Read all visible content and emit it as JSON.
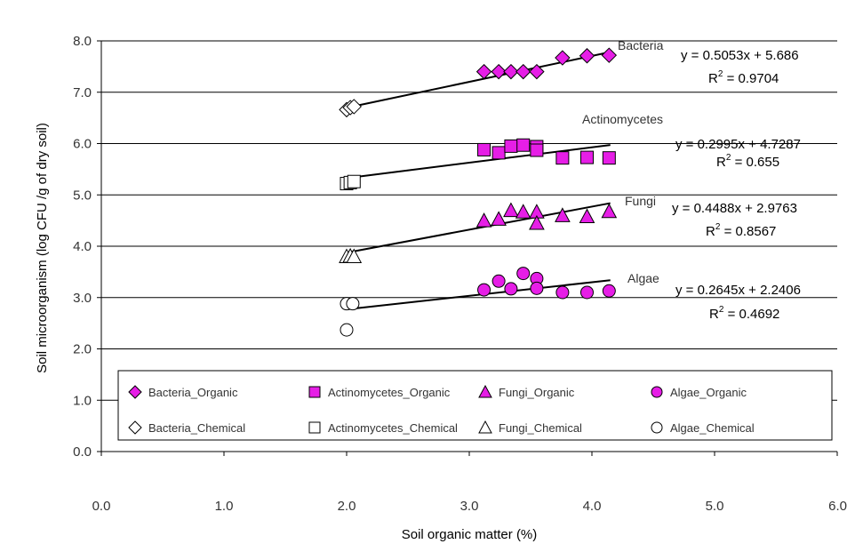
{
  "chart_data": {
    "type": "scatter",
    "xlabel": "Soil organic matter (%)",
    "ylabel": "Soil microorganism (log CFU /g of dry soil)",
    "xlim": [
      0,
      6
    ],
    "ylim": [
      0,
      8
    ],
    "xticks": [
      "0.0",
      "1.0",
      "2.0",
      "3.0",
      "4.0",
      "5.0",
      "6.0"
    ],
    "yticks": [
      "0.0",
      "1.0",
      "2.0",
      "3.0",
      "4.0",
      "5.0",
      "6.0",
      "7.0",
      "8.0"
    ],
    "grid": "horizontal",
    "legend_position": "bottom",
    "colors": {
      "organic": "#e61ee6",
      "chemical": "#ffffff",
      "line": "#000000"
    },
    "series": [
      {
        "name": "Bacteria_Organic",
        "marker": "diamond",
        "filled": true,
        "points": [
          [
            3.12,
            7.4
          ],
          [
            3.24,
            7.4
          ],
          [
            3.34,
            7.4
          ],
          [
            3.44,
            7.4
          ],
          [
            3.55,
            7.4
          ],
          [
            3.76,
            7.67
          ],
          [
            3.96,
            7.71
          ],
          [
            4.14,
            7.72
          ]
        ]
      },
      {
        "name": "Actinomycetes_Organic",
        "marker": "square",
        "filled": true,
        "points": [
          [
            3.12,
            5.88
          ],
          [
            3.24,
            5.82
          ],
          [
            3.34,
            5.95
          ],
          [
            3.44,
            5.97
          ],
          [
            3.55,
            5.94
          ],
          [
            3.55,
            5.87
          ],
          [
            3.76,
            5.72
          ],
          [
            3.96,
            5.73
          ],
          [
            4.14,
            5.72
          ]
        ]
      },
      {
        "name": "Fungi_Organic",
        "marker": "triangle",
        "filled": true,
        "points": [
          [
            3.12,
            4.5
          ],
          [
            3.24,
            4.53
          ],
          [
            3.34,
            4.7
          ],
          [
            3.44,
            4.67
          ],
          [
            3.55,
            4.67
          ],
          [
            3.55,
            4.45
          ],
          [
            3.76,
            4.6
          ],
          [
            3.96,
            4.58
          ],
          [
            4.14,
            4.68
          ]
        ]
      },
      {
        "name": "Algae_Organic",
        "marker": "circle",
        "filled": true,
        "points": [
          [
            3.12,
            3.15
          ],
          [
            3.24,
            3.32
          ],
          [
            3.34,
            3.17
          ],
          [
            3.44,
            3.47
          ],
          [
            3.55,
            3.37
          ],
          [
            3.55,
            3.18
          ],
          [
            3.76,
            3.1
          ],
          [
            3.96,
            3.1
          ],
          [
            4.14,
            3.13
          ]
        ]
      },
      {
        "name": "Bacteria_Chemical",
        "marker": "diamond",
        "filled": false,
        "points": [
          [
            2.0,
            6.66
          ],
          [
            2.03,
            6.7
          ],
          [
            2.06,
            6.72
          ]
        ]
      },
      {
        "name": "Actinomycetes_Chemical",
        "marker": "square",
        "filled": false,
        "points": [
          [
            2.0,
            5.22
          ],
          [
            2.03,
            5.24
          ],
          [
            2.06,
            5.26
          ]
        ]
      },
      {
        "name": "Fungi_Chemical",
        "marker": "triangle",
        "filled": false,
        "points": [
          [
            2.0,
            3.8
          ],
          [
            2.03,
            3.81
          ],
          [
            2.06,
            3.8
          ]
        ]
      },
      {
        "name": "Algae_Chemical",
        "marker": "circle",
        "filled": false,
        "points": [
          [
            2.0,
            2.88
          ],
          [
            2.05,
            2.88
          ],
          [
            2.0,
            2.37
          ]
        ]
      }
    ],
    "trendlines": [
      {
        "series": "Bacteria",
        "slope": 0.5053,
        "intercept": 5.686,
        "x_range": [
          2.0,
          4.15
        ],
        "label": "Bacteria",
        "equation": "y = 0.5053x + 5.686",
        "r2_value": "= 0.9704"
      },
      {
        "series": "Actinomycetes",
        "slope": 0.2995,
        "intercept": 4.7287,
        "x_range": [
          2.0,
          4.15
        ],
        "label": "Actinomycetes",
        "equation": "y = 0.2995x + 4.7287",
        "r2_value": "= 0.655"
      },
      {
        "series": "Fungi",
        "slope": 0.4488,
        "intercept": 2.9763,
        "x_range": [
          2.0,
          4.15
        ],
        "label": "Fungi",
        "equation": "y = 0.4488x + 2.9763",
        "r2_value": "= 0.8567"
      },
      {
        "series": "Algae",
        "slope": 0.2645,
        "intercept": 2.2406,
        "x_range": [
          2.0,
          4.15
        ],
        "label": "Algae",
        "equation": "y = 0.2645x + 2.2406",
        "r2_value": "= 0.4692"
      }
    ],
    "r2_symbol": "R",
    "r2_superscript": "2",
    "legend": [
      "Bacteria_Organic",
      "Actinomycetes_Organic",
      "Fungi_Organic",
      "Algae_Organic",
      "Bacteria_Chemical",
      "Actinomycetes_Chemical",
      "Fungi_Chemical",
      "Algae_Chemical"
    ]
  }
}
